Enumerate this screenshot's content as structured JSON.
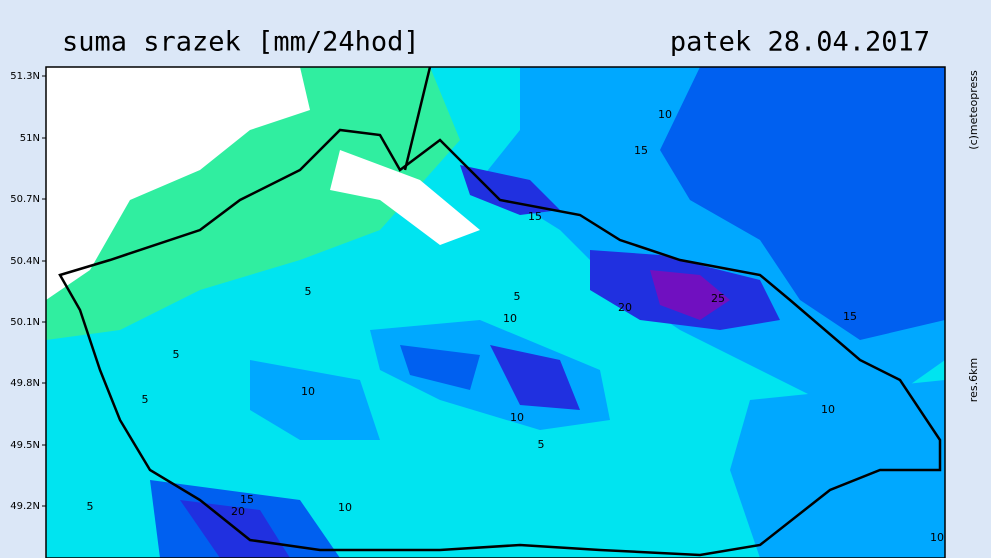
{
  "header": {
    "title": "suma srazek [mm/24hod]",
    "date": "patek 28.04.2017"
  },
  "side": {
    "copyright": "(c)meteopress",
    "resolution": "res.6km"
  },
  "latitude_labels": [
    "51.3N",
    "51N",
    "50.7N",
    "50.4N",
    "50.1N",
    "49.8N",
    "49.5N",
    "49.2N"
  ],
  "contour_labels": [
    "10",
    "15",
    "15",
    "5",
    "5",
    "10",
    "5",
    "20",
    "25",
    "15",
    "10",
    "5",
    "10",
    "10",
    "5",
    "15",
    "20",
    "5",
    "10",
    "10"
  ]
}
